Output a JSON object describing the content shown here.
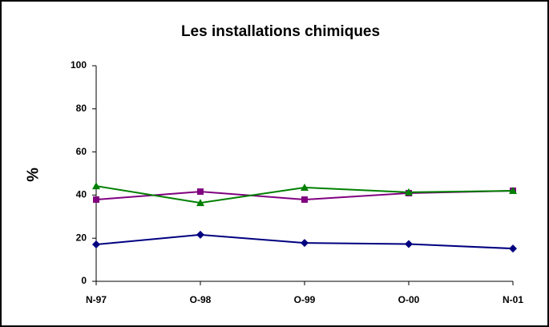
{
  "chart_data": {
    "type": "line",
    "title": "Les installations chimiques",
    "y_label": "%",
    "categories": [
      "N-97",
      "O-98",
      "O-99",
      "O-00",
      "N-01"
    ],
    "series": [
      {
        "color": "#000080",
        "marker": "diamond",
        "values": [
          17.1,
          21.6,
          17.8,
          17.3,
          15.2
        ]
      },
      {
        "color": "#800080",
        "marker": "square",
        "values": [
          37.9,
          41.6,
          37.9,
          40.9,
          42.0
        ]
      },
      {
        "color": "#008000",
        "marker": "triangle",
        "values": [
          44.2,
          36.4,
          43.5,
          41.3,
          42.0
        ]
      }
    ],
    "ylim": [
      0,
      100
    ],
    "yticks": [
      0,
      20,
      40,
      60,
      80,
      100
    ]
  }
}
